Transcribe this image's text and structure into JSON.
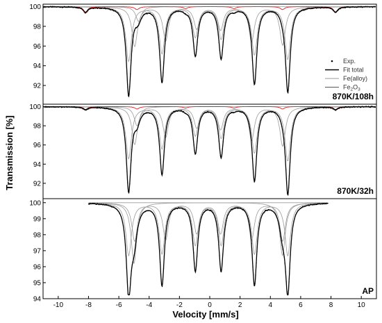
{
  "chart_data": {
    "type": "line",
    "xlabel": "Velocity [mm/s]",
    "ylabel": "Transmission [%]",
    "xlim": [
      -11,
      11
    ],
    "x_ticks": [
      -10,
      -8,
      -6,
      -4,
      -2,
      0,
      2,
      4,
      6,
      8,
      10
    ],
    "legend": {
      "placement": "right",
      "entries": [
        {
          "label": "Exp.",
          "marker": "dot",
          "color": "#000000"
        },
        {
          "label": "Fit total",
          "marker": "line",
          "color": "#000000"
        },
        {
          "label": "Fe(alloy)",
          "marker": "line",
          "color": "#9a9a9a"
        },
        {
          "label": "Fe",
          "sub": "2",
          "tail": "O",
          "sub2": "3",
          "marker": "line",
          "color": "#d62020"
        }
      ]
    },
    "panels": [
      {
        "label": "870K/108h",
        "ylim": [
          90.1,
          100.25
        ],
        "y_ticks": [
          92,
          94,
          96,
          98,
          100
        ],
        "lines": [
          -5.35,
          -3.15,
          -0.95,
          0.75,
          2.95,
          5.15
        ],
        "depths": [
          8.9,
          7.6,
          4.9,
          5.2,
          7.8,
          8.6
        ],
        "shoulder": {
          "x": -4.7,
          "depth": 1.5
        },
        "fe2o3": {
          "lines": [
            -8.2,
            -4.8,
            -1.6,
            1.6,
            4.8,
            8.3
          ],
          "depths": [
            0.55,
            0.3,
            0.2,
            0.2,
            0.3,
            0.55
          ]
        }
      },
      {
        "label": "870K/32h",
        "ylim": [
          90.4,
          100.25
        ],
        "y_ticks": [
          92,
          94,
          96,
          98,
          100
        ],
        "lines": [
          -5.35,
          -3.15,
          -0.95,
          0.75,
          2.95,
          5.15
        ],
        "depths": [
          8.7,
          7.0,
          4.8,
          5.2,
          7.7,
          9.1
        ],
        "shoulder": {
          "x": -4.8,
          "depth": 2.0
        },
        "fe2o3": {
          "lines": [
            -8.2,
            -4.8,
            -1.6,
            1.6,
            4.8,
            8.3
          ],
          "depths": [
            0.3,
            0.25,
            0.15,
            0.15,
            0.25,
            0.3
          ]
        }
      },
      {
        "label": "AP",
        "ylim": [
          94.0,
          100.25
        ],
        "y_ticks": [
          94,
          95,
          96,
          97,
          98,
          99,
          100
        ],
        "xrange": [
          -8,
          7.8
        ],
        "lines": [
          -5.35,
          -3.15,
          -0.95,
          0.75,
          2.95,
          5.15
        ],
        "depths": [
          5.3,
          5.1,
          4.2,
          4.2,
          5.1,
          5.3
        ],
        "shoulder": {
          "x": -5.0,
          "depth": 3.8
        },
        "shoulder2": {
          "x": 4.8,
          "depth": 3.3
        }
      }
    ]
  }
}
